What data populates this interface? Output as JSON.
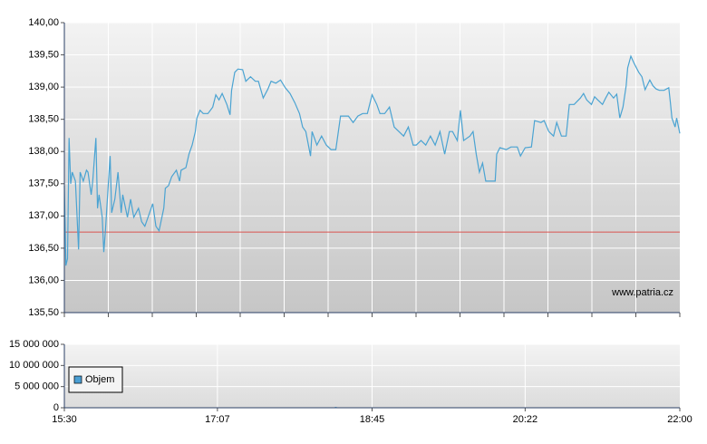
{
  "chart_data": [
    {
      "type": "line",
      "annotation": "www.patria.cz",
      "xlim": [
        "15:30",
        "22:00"
      ],
      "ylim": [
        135.5,
        140
      ],
      "yticks": [
        {
          "value": 135.5,
          "label": "135,50"
        },
        {
          "value": 136,
          "label": "136,00"
        },
        {
          "value": 136.5,
          "label": "136,50"
        },
        {
          "value": 137,
          "label": "137,00"
        },
        {
          "value": 137.5,
          "label": "137,50"
        },
        {
          "value": 138,
          "label": "138,00"
        },
        {
          "value": 138.5,
          "label": "138,50"
        },
        {
          "value": 139,
          "label": "139,00"
        },
        {
          "value": 139.5,
          "label": "139,50"
        },
        {
          "value": 140,
          "label": "140,00"
        }
      ],
      "grid": true,
      "reference_line": 136.75,
      "reference_color": "#d9534f",
      "x": [
        "15:30",
        "15:31",
        "15:32",
        "15:33",
        "15:34",
        "15:35",
        "15:37",
        "15:39",
        "15:40",
        "15:42",
        "15:44",
        "15:45",
        "15:47",
        "15:48",
        "15:50",
        "15:51",
        "15:52",
        "15:54",
        "15:55",
        "15:56",
        "15:58",
        "15:59",
        "16:00",
        "16:02",
        "16:04",
        "16:06",
        "16:07",
        "16:10",
        "16:12",
        "16:14",
        "16:17",
        "16:19",
        "16:21",
        "16:23",
        "16:26",
        "16:28",
        "16:30",
        "16:33",
        "16:34",
        "16:36",
        "16:38",
        "16:41",
        "16:43",
        "16:44",
        "16:47",
        "16:49",
        "16:51",
        "16:53",
        "16:54",
        "16:56",
        "16:58",
        "17:01",
        "17:04",
        "17:06",
        "17:08",
        "17:10",
        "17:13",
        "17:15",
        "17:16",
        "17:18",
        "17:20",
        "17:23",
        "17:25",
        "17:28",
        "17:31",
        "17:33",
        "17:36",
        "17:39",
        "17:41",
        "17:44",
        "17:47",
        "17:50",
        "17:53",
        "17:56",
        "17:59",
        "18:01",
        "18:03",
        "18:06",
        "18:07",
        "18:10",
        "18:13",
        "18:16",
        "18:19",
        "18:22",
        "18:25",
        "18:30",
        "18:33",
        "18:36",
        "18:39",
        "18:42",
        "18:45",
        "18:48",
        "18:50",
        "18:53",
        "18:56",
        "18:59",
        "19:02",
        "19:05",
        "19:08",
        "19:11",
        "19:13",
        "19:16",
        "19:19",
        "19:22",
        "19:25",
        "19:28",
        "19:31",
        "19:34",
        "19:36",
        "19:39",
        "19:41",
        "19:43",
        "19:47",
        "19:49",
        "19:51",
        "19:53",
        "19:55",
        "19:57",
        "19:59",
        "20:03",
        "20:04",
        "20:06",
        "20:10",
        "20:13",
        "20:17",
        "20:19",
        "20:22",
        "20:26",
        "20:28",
        "20:32",
        "20:34",
        "20:37",
        "20:40",
        "20:42",
        "20:45",
        "20:48",
        "20:50",
        "20:53",
        "20:57",
        "20:59",
        "21:01",
        "21:04",
        "21:06",
        "21:08",
        "21:11",
        "21:13",
        "21:15",
        "21:18",
        "21:20",
        "21:22",
        "21:24",
        "21:26",
        "21:27",
        "21:29",
        "21:31",
        "21:34",
        "21:36",
        "21:38",
        "21:41",
        "21:43",
        "21:45",
        "21:47",
        "21:50",
        "21:53",
        "21:54",
        "21:55",
        "21:57",
        "21:58",
        "22:00"
      ],
      "series": [
        {
          "color": "#4aa3d2",
          "values": [
            137.47,
            136.23,
            136.34,
            138.21,
            137.5,
            137.68,
            137.54,
            136.48,
            137.68,
            137.54,
            137.71,
            137.68,
            137.33,
            137.54,
            138.21,
            137.12,
            137.33,
            136.98,
            136.44,
            136.77,
            137.54,
            137.93,
            137.05,
            137.26,
            137.68,
            137.05,
            137.33,
            136.98,
            137.26,
            136.98,
            137.12,
            136.91,
            136.84,
            136.98,
            137.19,
            136.84,
            136.77,
            137.12,
            137.43,
            137.47,
            137.61,
            137.71,
            137.54,
            137.71,
            137.75,
            137.96,
            138.1,
            138.31,
            138.52,
            138.64,
            138.59,
            138.59,
            138.69,
            138.88,
            138.8,
            138.9,
            138.73,
            138.57,
            138.95,
            139.23,
            139.28,
            139.27,
            139.09,
            139.16,
            139.09,
            139.09,
            138.83,
            138.97,
            139.09,
            139.06,
            139.11,
            138.99,
            138.9,
            138.76,
            138.59,
            138.38,
            138.31,
            137.93,
            138.31,
            138.1,
            138.24,
            138.1,
            138.03,
            138.03,
            138.55,
            138.55,
            138.45,
            138.55,
            138.59,
            138.59,
            138.88,
            138.73,
            138.59,
            138.59,
            138.69,
            138.38,
            138.31,
            138.24,
            138.38,
            138.1,
            138.1,
            138.17,
            138.1,
            138.24,
            138.1,
            138.31,
            137.96,
            138.31,
            138.31,
            138.17,
            138.64,
            138.17,
            138.24,
            138.31,
            137.96,
            137.68,
            137.82,
            137.54,
            137.54,
            137.54,
            137.96,
            138.06,
            138.03,
            138.07,
            138.07,
            137.93,
            138.06,
            138.07,
            138.48,
            138.45,
            138.48,
            138.31,
            138.24,
            138.45,
            138.24,
            138.24,
            138.73,
            138.73,
            138.83,
            138.9,
            138.8,
            138.73,
            138.85,
            138.8,
            138.73,
            138.83,
            138.92,
            138.83,
            138.89,
            138.52,
            138.69,
            139.02,
            139.3,
            139.48,
            139.37,
            139.23,
            139.16,
            138.96,
            139.11,
            139.02,
            138.97,
            138.95,
            138.95,
            138.99,
            138.76,
            138.52,
            138.38,
            138.52,
            138.28
          ]
        }
      ]
    },
    {
      "type": "bar",
      "xlim": [
        "15:30",
        "22:00"
      ],
      "xticks": [
        "15:30",
        "17:07",
        "18:45",
        "20:22",
        "22:00"
      ],
      "ylim": [
        0,
        15000000
      ],
      "yticks": [
        {
          "value": 0,
          "label": "0"
        },
        {
          "value": 5000000,
          "label": "5 000 000"
        },
        {
          "value": 10000000,
          "label": "10 000 000"
        },
        {
          "value": 15000000,
          "label": "15 000 000"
        }
      ],
      "grid": true,
      "legend": "left",
      "series": [
        {
          "name": "Objem",
          "color": "#4a9fd4",
          "x": [
            "18:22"
          ],
          "values": [
            200000
          ]
        }
      ]
    }
  ]
}
